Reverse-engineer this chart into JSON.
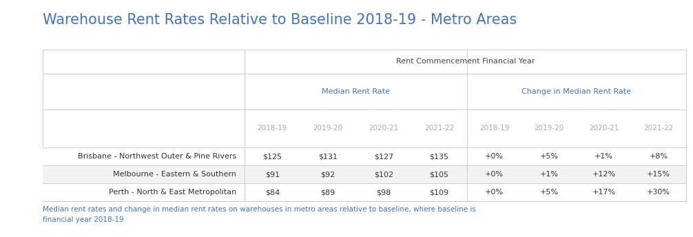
{
  "title": "Warehouse Rent Rates Relative to Baseline 2018-19 - Metro Areas",
  "title_color": "#4472C4",
  "title_fontsize": 15,
  "top_header": "Rent Commencement Financial Year",
  "sub_header_left": "Median Rent Rate",
  "sub_header_right": "Change in Median Rent Rate",
  "sub_header_color": "#4472C4",
  "year_labels": [
    "2018-19",
    "2019-20",
    "2020-21",
    "2021-22",
    "2018-19",
    "2019-20",
    "2020-21",
    "2021-22"
  ],
  "year_label_color": "#aaaaaa",
  "rows": [
    {
      "label": "Brisbane - Northwest Outer & Pine Rivers",
      "rent": [
        "$125",
        "$131",
        "$127",
        "$135"
      ],
      "change": [
        "+0%",
        "+5%",
        "+1%",
        "+8%"
      ],
      "bg": "#ffffff"
    },
    {
      "label": "Melbourne - Eastern & Southern",
      "rent": [
        "$91",
        "$92",
        "$102",
        "$105"
      ],
      "change": [
        "+0%",
        "+1%",
        "+12%",
        "+15%"
      ],
      "bg": "#f2f2f2"
    },
    {
      "label": "Perth - North & East Metropolitan",
      "rent": [
        "$84",
        "$89",
        "$98",
        "$109"
      ],
      "change": [
        "+0%",
        "+5%",
        "+17%",
        "+30%"
      ],
      "bg": "#ffffff"
    }
  ],
  "data_color": "#333333",
  "label_color": "#333333",
  "footer_text": "Median rent rates and change in median rent rates on warehouses in metro areas relative to baseline, where baseline is\nfinancial year 2018-19",
  "footer_color": "#4472C4",
  "border_color": "#cccccc",
  "header_text_color": "#444444"
}
